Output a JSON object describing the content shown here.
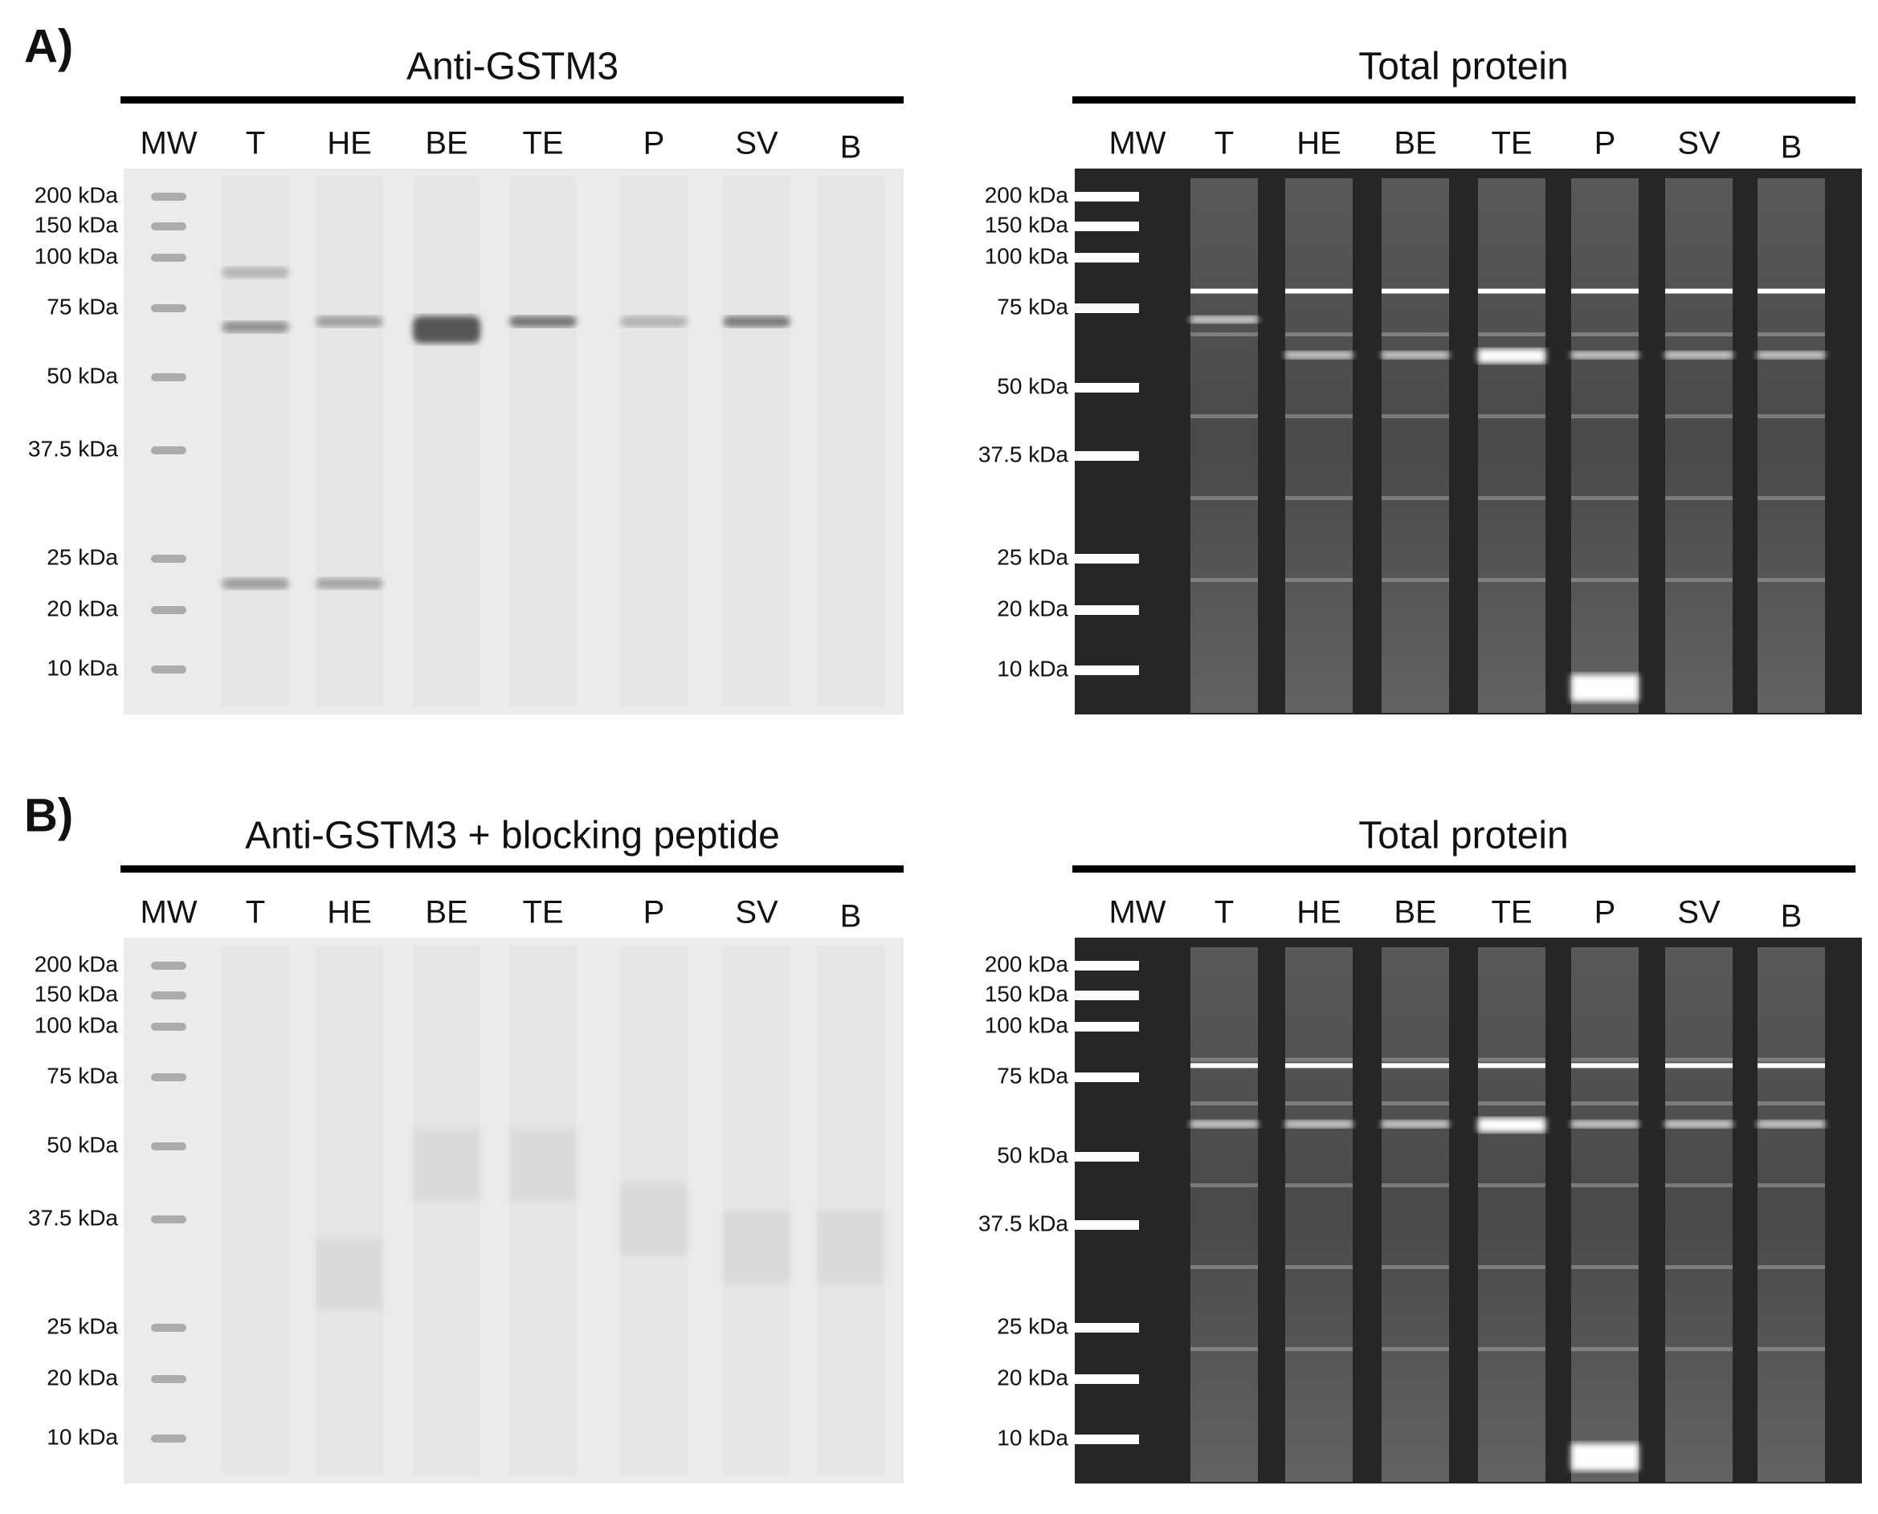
{
  "panels": [
    {
      "label": "A)",
      "blots": [
        {
          "title": "Anti-GSTM3",
          "lanes": [
            "MW",
            "T",
            "HE",
            "BE",
            "TE",
            "P",
            "SV",
            "B"
          ],
          "markers": [
            "200 kDa",
            "150 kDa",
            "100 kDa",
            "75 kDa",
            "50 kDa",
            "37.5 kDa",
            "25 kDa",
            "20 kDa",
            "10 kDa"
          ]
        },
        {
          "title": "Total protein",
          "lanes": [
            "MW",
            "T",
            "HE",
            "BE",
            "TE",
            "P",
            "SV",
            "B"
          ],
          "markers": [
            "200 kDa",
            "150 kDa",
            "100 kDa",
            "75 kDa",
            "50 kDa",
            "37.5 kDa",
            "25 kDa",
            "20 kDa",
            "10 kDa"
          ]
        }
      ]
    },
    {
      "label": "B)",
      "blots": [
        {
          "title": "Anti-GSTM3 + blocking peptide",
          "lanes": [
            "MW",
            "T",
            "HE",
            "BE",
            "TE",
            "P",
            "SV",
            "B"
          ],
          "markers": [
            "200 kDa",
            "150 kDa",
            "100 kDa",
            "75 kDa",
            "50 kDa",
            "37.5 kDa",
            "25 kDa",
            "20 kDa",
            "10 kDa"
          ]
        },
        {
          "title": "Total protein",
          "lanes": [
            "MW",
            "T",
            "HE",
            "BE",
            "TE",
            "P",
            "SV",
            "B"
          ],
          "markers": [
            "200 kDa",
            "150 kDa",
            "100 kDa",
            "75 kDa",
            "50 kDa",
            "37.5 kDa",
            "25 kDa",
            "20 kDa",
            "10 kDa"
          ]
        }
      ]
    }
  ]
}
